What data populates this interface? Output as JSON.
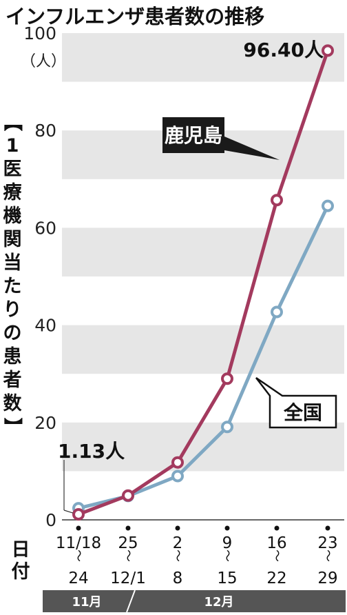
{
  "chart_data": {
    "type": "line",
    "title": "インフルエンザ患者数の推移",
    "ylabel": "【1医療機関当たりの患者数】",
    "yunit": "（人）",
    "ylim": [
      0,
      100
    ],
    "yticks": [
      0,
      20,
      40,
      60,
      80,
      100
    ],
    "grid": "horizontal bands",
    "xlabel": "日付",
    "categories": [
      {
        "top": "11/18",
        "bottom": "24"
      },
      {
        "top": "25",
        "bottom": "12/1"
      },
      {
        "top": "2",
        "bottom": "8"
      },
      {
        "top": "9",
        "bottom": "15"
      },
      {
        "top": "16",
        "bottom": "22"
      },
      {
        "top": "23",
        "bottom": "29"
      }
    ],
    "range_mark": "～",
    "months": [
      {
        "label": "11月",
        "from": 0,
        "to": 1.4
      },
      {
        "label": "12月",
        "from": 1.4,
        "to": 5
      }
    ],
    "series": [
      {
        "name": "鹿児島",
        "color": "#a33a5e",
        "values": [
          1.13,
          5.0,
          11.8,
          29.0,
          65.7,
          96.4
        ]
      },
      {
        "name": "全国",
        "color": "#7fa8c3",
        "values": [
          2.4,
          4.9,
          9.0,
          19.1,
          42.7,
          64.5
        ]
      }
    ],
    "annotations": [
      {
        "text": "1.13人",
        "series": 0,
        "index": 0
      },
      {
        "text": "96.40人",
        "series": 0,
        "index": 5
      }
    ],
    "colors": {
      "band": "#e6e6e6",
      "axis": "#333333",
      "month_bar": "#555555"
    }
  }
}
